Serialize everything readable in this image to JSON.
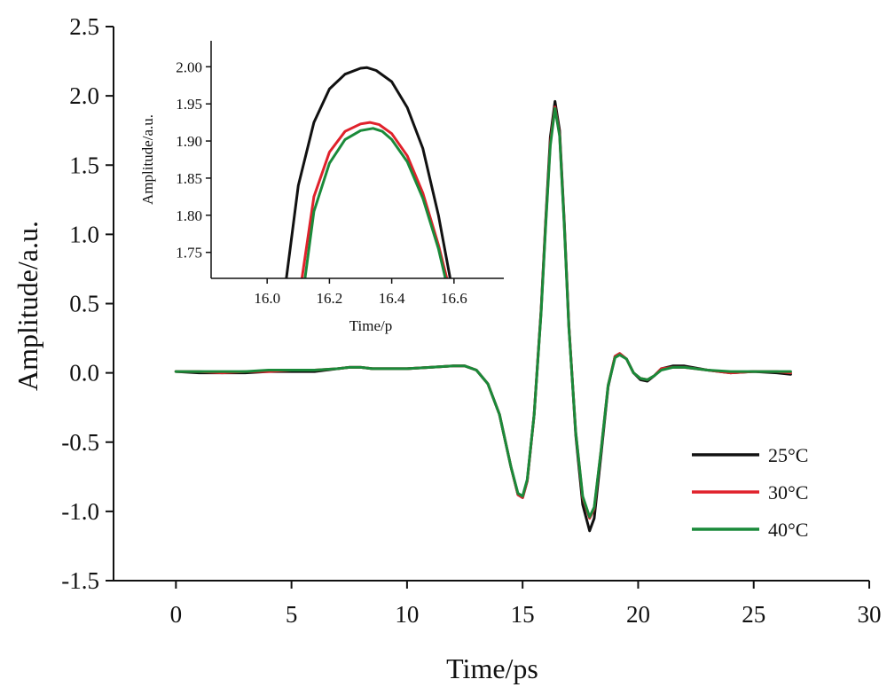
{
  "chart_data": [
    {
      "type": "line",
      "title": "",
      "xlabel": "Time/ps",
      "ylabel": "Amplitude/a.u.",
      "xlim": [
        -2.7,
        30
      ],
      "ylim": [
        -1.5,
        2.5
      ],
      "x_ticks": [
        "0",
        "5",
        "10",
        "15",
        "20",
        "25",
        "30"
      ],
      "x_tick_values": [
        0,
        5,
        10,
        15,
        20,
        25,
        30
      ],
      "y_ticks": [
        "-1.5",
        "-1.0",
        "-0.5",
        "0.0",
        "0.5",
        "1.0",
        "1.5",
        "2.0",
        "2.5"
      ],
      "y_tick_values": [
        -1.5,
        -1.0,
        -0.5,
        0.0,
        0.5,
        1.0,
        1.5,
        2.0,
        2.5
      ],
      "legend_position": "lower-right",
      "series": [
        {
          "name": "25°C",
          "color": "#111111",
          "x": [
            0,
            1,
            2,
            3,
            4,
            5,
            6,
            7,
            7.5,
            8,
            8.5,
            9,
            10,
            11,
            12,
            12.5,
            13,
            13.5,
            14,
            14.5,
            14.8,
            15.0,
            15.2,
            15.5,
            15.8,
            16.0,
            16.2,
            16.4,
            16.6,
            16.8,
            17.0,
            17.3,
            17.6,
            17.9,
            18.1,
            18.4,
            18.7,
            19.0,
            19.2,
            19.5,
            19.8,
            20.1,
            20.4,
            20.7,
            21.0,
            21.5,
            22,
            23,
            24,
            25,
            26,
            26.6
          ],
          "y": [
            0.01,
            0.0,
            0.0,
            0.0,
            0.01,
            0.01,
            0.01,
            0.03,
            0.04,
            0.04,
            0.03,
            0.03,
            0.03,
            0.04,
            0.05,
            0.05,
            0.02,
            -0.08,
            -0.3,
            -0.68,
            -0.88,
            -0.9,
            -0.78,
            -0.3,
            0.45,
            1.1,
            1.7,
            1.96,
            1.75,
            1.1,
            0.35,
            -0.45,
            -0.95,
            -1.14,
            -1.05,
            -0.58,
            -0.1,
            0.12,
            0.14,
            0.1,
            0.0,
            -0.05,
            -0.06,
            -0.02,
            0.03,
            0.05,
            0.05,
            0.02,
            0.0,
            0.01,
            0.0,
            -0.01
          ]
        },
        {
          "name": "30°C",
          "color": "#e0212b",
          "x": [
            0,
            1,
            2,
            3,
            4,
            5,
            6,
            7,
            7.5,
            8,
            8.5,
            9,
            10,
            11,
            12,
            12.5,
            13,
            13.5,
            14,
            14.5,
            14.8,
            15.0,
            15.2,
            15.5,
            15.8,
            16.0,
            16.2,
            16.4,
            16.6,
            16.8,
            17.0,
            17.3,
            17.6,
            17.9,
            18.1,
            18.4,
            18.7,
            19.0,
            19.2,
            19.5,
            19.8,
            20.1,
            20.4,
            20.7,
            21.0,
            21.5,
            22,
            23,
            24,
            25,
            26,
            26.6
          ],
          "y": [
            0.01,
            0.01,
            0.0,
            0.01,
            0.01,
            0.02,
            0.02,
            0.03,
            0.04,
            0.04,
            0.03,
            0.03,
            0.03,
            0.04,
            0.05,
            0.05,
            0.02,
            -0.08,
            -0.3,
            -0.68,
            -0.88,
            -0.9,
            -0.78,
            -0.3,
            0.44,
            1.08,
            1.66,
            1.92,
            1.72,
            1.08,
            0.34,
            -0.43,
            -0.9,
            -1.05,
            -0.98,
            -0.55,
            -0.09,
            0.12,
            0.14,
            0.1,
            0.0,
            -0.04,
            -0.05,
            -0.02,
            0.03,
            0.04,
            0.04,
            0.02,
            0.0,
            0.01,
            0.01,
            0.0
          ]
        },
        {
          "name": "40°C",
          "color": "#1a8a3a",
          "x": [
            0,
            1,
            2,
            3,
            4,
            5,
            6,
            7,
            7.5,
            8,
            8.5,
            9,
            10,
            11,
            12,
            12.5,
            13,
            13.5,
            14,
            14.5,
            14.8,
            15.0,
            15.2,
            15.5,
            15.8,
            16.0,
            16.2,
            16.4,
            16.6,
            16.8,
            17.0,
            17.3,
            17.6,
            17.9,
            18.1,
            18.4,
            18.7,
            19.0,
            19.2,
            19.5,
            19.8,
            20.1,
            20.4,
            20.7,
            21.0,
            21.5,
            22,
            23,
            24,
            25,
            26,
            26.6
          ],
          "y": [
            0.01,
            0.01,
            0.01,
            0.01,
            0.02,
            0.02,
            0.02,
            0.03,
            0.04,
            0.04,
            0.03,
            0.03,
            0.03,
            0.04,
            0.05,
            0.05,
            0.02,
            -0.08,
            -0.3,
            -0.68,
            -0.87,
            -0.89,
            -0.77,
            -0.3,
            0.43,
            1.06,
            1.64,
            1.91,
            1.71,
            1.07,
            0.33,
            -0.43,
            -0.89,
            -1.04,
            -0.97,
            -0.55,
            -0.09,
            0.11,
            0.13,
            0.1,
            0.0,
            -0.04,
            -0.05,
            -0.02,
            0.02,
            0.04,
            0.04,
            0.02,
            0.01,
            0.01,
            0.01,
            0.01
          ]
        }
      ]
    },
    {
      "type": "line",
      "title": "",
      "xlabel": "Time/p",
      "ylabel": "Amplitude/a.u.",
      "xlim": [
        15.82,
        16.76
      ],
      "ylim": [
        1.715,
        2.035
      ],
      "x_ticks": [
        "16.0",
        "16.2",
        "16.4",
        "16.6"
      ],
      "x_tick_values": [
        16.0,
        16.2,
        16.4,
        16.6
      ],
      "y_ticks": [
        "1.75",
        "1.80",
        "1.85",
        "1.90",
        "1.95",
        "2.00"
      ],
      "y_tick_values": [
        1.75,
        1.8,
        1.85,
        1.9,
        1.95,
        2.0
      ],
      "series": [
        {
          "name": "25°C",
          "color": "#111111",
          "x": [
            16.06,
            16.1,
            16.15,
            16.2,
            16.25,
            16.3,
            16.32,
            16.35,
            16.4,
            16.45,
            16.5,
            16.55,
            16.59
          ],
          "y": [
            1.71,
            1.84,
            1.925,
            1.97,
            1.99,
            1.998,
            1.999,
            1.995,
            1.98,
            1.945,
            1.89,
            1.8,
            1.71
          ]
        },
        {
          "name": "30°C",
          "color": "#e0212b",
          "x": [
            16.11,
            16.15,
            16.2,
            16.25,
            16.3,
            16.33,
            16.36,
            16.4,
            16.45,
            16.5,
            16.55,
            16.58
          ],
          "y": [
            1.71,
            1.825,
            1.885,
            1.913,
            1.923,
            1.925,
            1.922,
            1.91,
            1.88,
            1.83,
            1.76,
            1.71
          ]
        },
        {
          "name": "40°C",
          "color": "#1a8a3a",
          "x": [
            16.12,
            16.15,
            16.2,
            16.25,
            16.3,
            16.34,
            16.37,
            16.4,
            16.45,
            16.5,
            16.55,
            16.575
          ],
          "y": [
            1.71,
            1.805,
            1.87,
            1.902,
            1.914,
            1.917,
            1.913,
            1.902,
            1.872,
            1.823,
            1.755,
            1.71
          ]
        }
      ]
    }
  ]
}
